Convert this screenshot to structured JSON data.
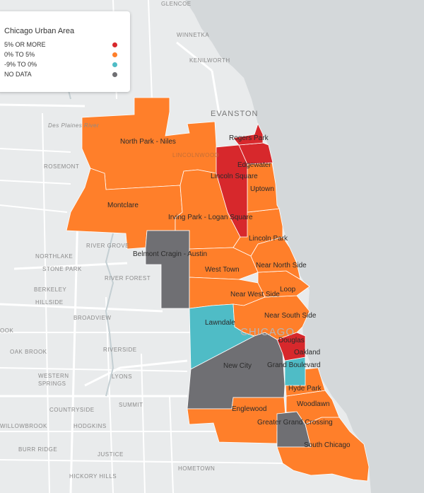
{
  "legend": {
    "title": "Chicago Urban Area",
    "items": [
      {
        "label": "5% OR MORE",
        "color": "#d7282c"
      },
      {
        "label": "0% TO 5%",
        "color": "#ff7f2a"
      },
      {
        "label": "-9% TO 0%",
        "color": "#4fbcc6"
      },
      {
        "label": "NO DATA",
        "color": "#6f6f73"
      }
    ]
  },
  "colors": {
    "land": "#e9ebec",
    "water": "#d4d8da",
    "road": "#ffffff",
    "river": "#c4cfd3"
  },
  "regions": [
    {
      "name": "North Park - Niles",
      "category": "0% TO 5%"
    },
    {
      "name": "Rogers Park",
      "category": "5% OR MORE"
    },
    {
      "name": "Edgewater",
      "category": "5% OR MORE"
    },
    {
      "name": "Lincoln Square",
      "category": "5% OR MORE"
    },
    {
      "name": "Uptown",
      "category": "0% TO 5%"
    },
    {
      "name": "Montclare",
      "category": "0% TO 5%"
    },
    {
      "name": "Irving Park - Logan Square",
      "category": "0% TO 5%"
    },
    {
      "name": "Lincoln Park",
      "category": "0% TO 5%"
    },
    {
      "name": "Belmont Cragin - Austin",
      "category": "NO DATA"
    },
    {
      "name": "West Town",
      "category": "0% TO 5%"
    },
    {
      "name": "Near North Side",
      "category": "0% TO 5%"
    },
    {
      "name": "Loop",
      "category": "0% TO 5%"
    },
    {
      "name": "Near West Side",
      "category": "0% TO 5%"
    },
    {
      "name": "Near South Side",
      "category": "0% TO 5%"
    },
    {
      "name": "Lawndale",
      "category": "-9% TO 0%"
    },
    {
      "name": "Douglas",
      "category": "5% OR MORE"
    },
    {
      "name": "Oakland",
      "category": "5% OR MORE"
    },
    {
      "name": "New City",
      "category": "NO DATA"
    },
    {
      "name": "Grand Boulevard",
      "category": "-9% TO 0%"
    },
    {
      "name": "Hyde Park",
      "category": "0% TO 5%"
    },
    {
      "name": "Englewood",
      "category": "0% TO 5%"
    },
    {
      "name": "Woodlawn",
      "category": "0% TO 5%"
    },
    {
      "name": "Greater Grand Crossing",
      "category": "NO DATA"
    },
    {
      "name": "South Chicago",
      "category": "0% TO 5%"
    }
  ],
  "places": [
    "GLENCOE",
    "WINNETKA",
    "KENILWORTH",
    "EVANSTON",
    "Des Plaines River",
    "ROSEMONT",
    "RIVER GROVE",
    "NORTHLAKE",
    "STONE PARK",
    "RIVER FOREST",
    "BERKELEY",
    "HILLSIDE",
    "BROADVIEW",
    "OOK",
    "OAK BROOK",
    "RIVERSIDE",
    "WESTERN",
    "SPRINGS",
    "LYONS",
    "SUMMIT",
    "COUNTRYSIDE",
    "WILLOWBROOK",
    "HODGKINS",
    "BURR RIDGE",
    "JUSTICE",
    "HICKORY HILLS",
    "HOMETOWN",
    "CHICAGO",
    "LINCOLNWOOD"
  ]
}
